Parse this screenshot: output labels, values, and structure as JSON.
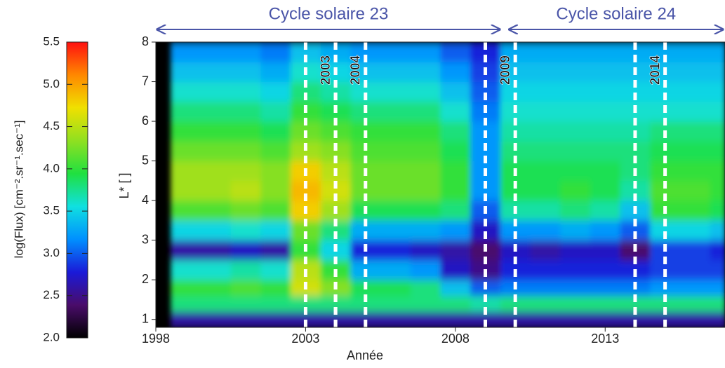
{
  "chart_data": {
    "type": "heatmap",
    "x_label": "Année",
    "y_label": "L* [ ]",
    "colorbar_label": "log(Flux) [cm⁻².sr⁻¹.sec⁻¹]",
    "xlim": [
      1998,
      2017
    ],
    "xticks": [
      1998,
      2003,
      2008,
      2013
    ],
    "ylim": [
      0.8,
      8
    ],
    "yticks": [
      1,
      2,
      3,
      4,
      5,
      6,
      7,
      8
    ],
    "zlim": [
      2,
      5.5
    ],
    "zticks": [
      {
        "value": 2,
        "label": "2.0"
      },
      2.5,
      {
        "value": 3,
        "label": "3.0"
      },
      3.5,
      {
        "value": 4,
        "label": "4.0"
      },
      4.5,
      {
        "value": 5,
        "label": "5.0"
      },
      5.5
    ],
    "colorscale": [
      "#000000",
      "#4a0c6a",
      "#1a1ad8",
      "#0090ff",
      "#10e0e0",
      "#20e040",
      "#90e020",
      "#f0e000",
      "#ff8800",
      "#ff1010"
    ],
    "x": [
      1998.5,
      1999.5,
      2000.5,
      2001.5,
      2002.5,
      2003.5,
      2004.5,
      2005.5,
      2006.5,
      2007.5,
      2008.5,
      2009.5,
      2010.5,
      2011.5,
      2012.5,
      2013.5,
      2014.5,
      2015.5,
      2016.5
    ],
    "y": [
      0.8,
      1.2,
      1.6,
      2,
      2.5,
      3,
      3.5,
      4,
      4.5,
      5,
      5.5,
      6,
      6.5,
      7,
      7.5
    ],
    "values": [
      [
        2.6,
        3.8,
        4.0,
        3.6,
        2.6,
        3.5,
        4.1,
        4.4,
        4.4,
        4.2,
        4.0,
        3.8,
        3.6,
        3.4,
        3.2
      ],
      [
        2.6,
        3.8,
        4.0,
        3.6,
        2.6,
        3.5,
        4.1,
        4.4,
        4.4,
        4.2,
        4.0,
        3.8,
        3.6,
        3.4,
        3.2
      ],
      [
        2.6,
        3.8,
        4.1,
        3.7,
        2.7,
        3.6,
        4.2,
        4.5,
        4.4,
        4.2,
        4.0,
        3.8,
        3.6,
        3.4,
        3.2
      ],
      [
        2.6,
        3.8,
        4.0,
        3.6,
        2.6,
        3.5,
        4.1,
        4.3,
        4.3,
        4.1,
        3.9,
        3.7,
        3.5,
        3.3,
        3.1
      ],
      [
        2.6,
        3.8,
        4.6,
        4.5,
        4.0,
        4.2,
        4.8,
        4.9,
        4.8,
        4.4,
        4.2,
        4.0,
        3.8,
        3.6,
        3.4
      ],
      [
        2.6,
        3.8,
        4.3,
        4.0,
        3.5,
        3.8,
        4.4,
        4.6,
        4.5,
        4.3,
        4.1,
        3.9,
        3.7,
        3.5,
        3.3
      ],
      [
        2.6,
        3.8,
        3.9,
        3.3,
        2.8,
        3.3,
        3.9,
        4.2,
        4.2,
        4.1,
        4.0,
        3.8,
        3.6,
        3.4,
        3.2
      ],
      [
        2.6,
        3.8,
        3.9,
        3.3,
        2.8,
        3.3,
        3.9,
        4.2,
        4.2,
        4.1,
        4.0,
        3.8,
        3.6,
        3.4,
        3.2
      ],
      [
        2.6,
        3.8,
        3.8,
        3.2,
        2.7,
        3.3,
        3.9,
        4.2,
        4.2,
        4.1,
        4.0,
        3.8,
        3.6,
        3.4,
        3.2
      ],
      [
        2.6,
        3.8,
        3.4,
        2.7,
        2.6,
        3.2,
        3.8,
        4.0,
        4.0,
        3.9,
        3.8,
        3.6,
        3.4,
        3.2,
        3.0
      ],
      [
        2.6,
        3.7,
        3.0,
        2.5,
        2.4,
        2.7,
        3.0,
        3.2,
        3.2,
        3.2,
        3.2,
        3.1,
        3.0,
        2.9,
        2.8
      ],
      [
        2.6,
        3.8,
        3.1,
        2.8,
        2.7,
        3.2,
        3.7,
        3.9,
        3.9,
        3.8,
        3.7,
        3.6,
        3.5,
        3.4,
        3.3
      ],
      [
        2.6,
        3.8,
        3.1,
        2.8,
        2.6,
        3.2,
        3.7,
        3.9,
        3.9,
        3.8,
        3.7,
        3.6,
        3.5,
        3.4,
        3.3
      ],
      [
        2.6,
        3.8,
        3.1,
        2.8,
        2.7,
        3.3,
        3.8,
        4.0,
        3.9,
        3.8,
        3.7,
        3.6,
        3.5,
        3.4,
        3.3
      ],
      [
        2.6,
        3.8,
        3.1,
        2.8,
        2.7,
        3.2,
        3.7,
        3.9,
        3.9,
        3.8,
        3.7,
        3.6,
        3.5,
        3.4,
        3.3
      ],
      [
        2.6,
        3.8,
        3.1,
        2.8,
        2.4,
        3.0,
        3.4,
        3.7,
        3.8,
        3.8,
        3.7,
        3.6,
        3.5,
        3.4,
        3.3
      ],
      [
        2.6,
        3.8,
        3.2,
        2.9,
        2.9,
        3.5,
        4.0,
        4.1,
        4.0,
        3.9,
        3.8,
        3.6,
        3.5,
        3.4,
        3.3
      ],
      [
        2.6,
        3.8,
        3.2,
        2.9,
        2.9,
        3.5,
        4.0,
        4.1,
        4.0,
        3.9,
        3.8,
        3.6,
        3.5,
        3.4,
        3.3
      ],
      [
        2.6,
        3.8,
        3.2,
        2.9,
        2.8,
        3.4,
        3.9,
        4.0,
        4.0,
        3.9,
        3.8,
        3.6,
        3.5,
        3.4,
        3.3
      ]
    ],
    "annotations": [
      {
        "label": "2003",
        "x": [
          2003,
          2004
        ]
      },
      {
        "label": "2004",
        "x": [
          2004,
          2005
        ]
      },
      {
        "label": "2009",
        "x": [
          2009,
          2010
        ]
      },
      {
        "label": "2014",
        "x": [
          2014,
          2015
        ]
      }
    ],
    "cycles": [
      {
        "label": "Cycle solaire 23",
        "x": [
          1998,
          2009.55
        ],
        "color": "#4a55a8"
      },
      {
        "label": "Cycle solaire 24",
        "x": [
          2009.75,
          2017
        ],
        "color": "#4a55a8"
      }
    ]
  }
}
